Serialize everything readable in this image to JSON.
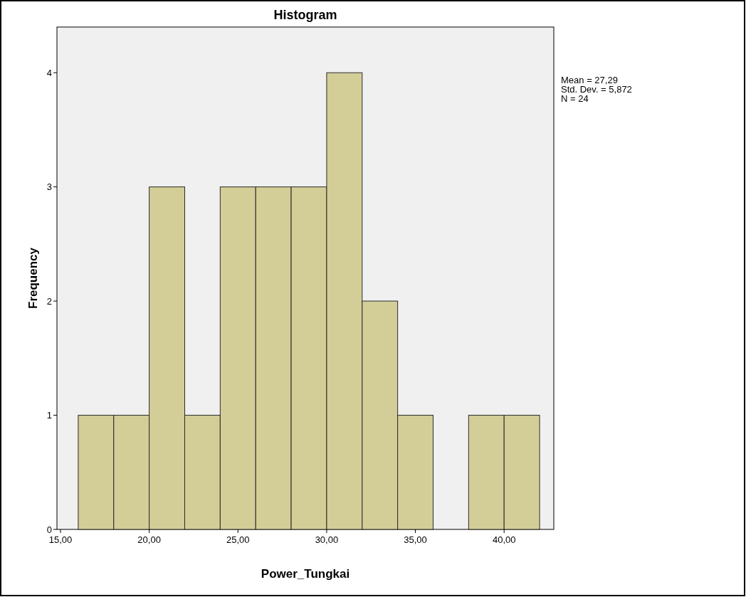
{
  "chart_data": {
    "type": "histogram",
    "title": "Histogram",
    "xlabel": "Power_Tungkai",
    "ylabel": "Frequency",
    "bins": [
      16,
      18,
      20,
      22,
      24,
      26,
      28,
      30,
      32,
      34,
      36,
      38,
      40,
      42
    ],
    "values": [
      1,
      1,
      3,
      1,
      3,
      3,
      3,
      4,
      2,
      1,
      0,
      1,
      1
    ],
    "color": "#d3ce97",
    "xlim": [
      14.8,
      42.8
    ],
    "xticks": [
      {
        "value": 15,
        "label": "15,00"
      },
      {
        "value": 20,
        "label": "20,00"
      },
      {
        "value": 25,
        "label": "25,00"
      },
      {
        "value": 30,
        "label": "30,00"
      },
      {
        "value": 35,
        "label": "35,00"
      },
      {
        "value": 40,
        "label": "40,00"
      }
    ],
    "ylim": [
      0,
      4.4
    ],
    "yticks": [
      0,
      1,
      2,
      3,
      4
    ],
    "grid": false,
    "annotations": [
      "Mean = 27,29",
      "Std. Dev. = 5,872",
      "N = 24"
    ]
  }
}
